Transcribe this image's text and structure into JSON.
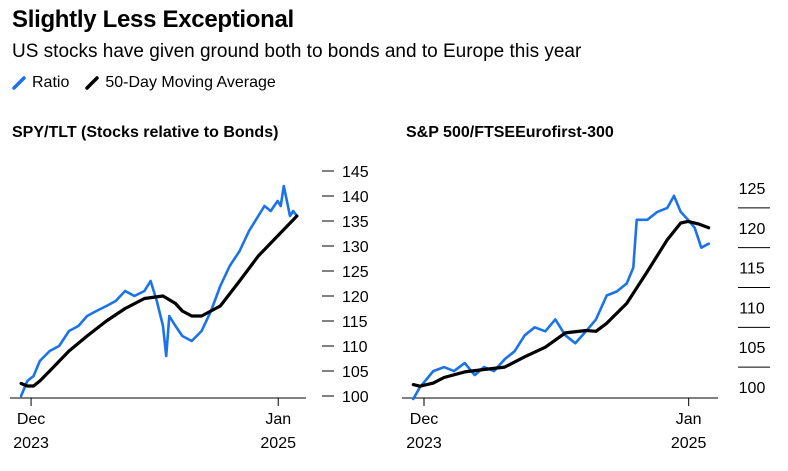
{
  "header": {
    "title": "Slightly Less Exceptional",
    "subtitle": "US stocks have given ground both to bonds and to Europe this year"
  },
  "legend": {
    "items": [
      {
        "label": "Ratio",
        "color": "#1a73e8"
      },
      {
        "label": "50-Day Moving Average",
        "color": "#000000"
      }
    ],
    "placement": "top-left"
  },
  "colors": {
    "ratio": "#1a73e8",
    "moving_average": "#000000",
    "axis": "#000000"
  },
  "chart_data": [
    {
      "type": "line",
      "title": "SPY/TLT (Stocks relative to Bonds)",
      "x_tick_labels": [
        {
          "date": "2023-12-01",
          "line1": "Dec",
          "line2": "2023"
        },
        {
          "date": "2025-01-01",
          "line1": "Jan",
          "line2": "2025"
        }
      ],
      "ylim": [
        100,
        145
      ],
      "y_ticks": [
        100,
        105,
        110,
        115,
        120,
        125,
        130,
        135,
        140,
        145
      ],
      "grid": false,
      "series": [
        {
          "name": "Ratio",
          "color": "#1a73e8",
          "points": [
            [
              "2023-11-15",
              100
            ],
            [
              "2023-11-25",
              103
            ],
            [
              "2023-12-05",
              104
            ],
            [
              "2023-12-15",
              107
            ],
            [
              "2023-12-31",
              109
            ],
            [
              "2024-01-15",
              110
            ],
            [
              "2024-01-31",
              113
            ],
            [
              "2024-02-15",
              114
            ],
            [
              "2024-02-29",
              116
            ],
            [
              "2024-03-15",
              117
            ],
            [
              "2024-03-31",
              118
            ],
            [
              "2024-04-15",
              119
            ],
            [
              "2024-04-30",
              121
            ],
            [
              "2024-05-15",
              120
            ],
            [
              "2024-05-31",
              121
            ],
            [
              "2024-06-10",
              123
            ],
            [
              "2024-06-20",
              119
            ],
            [
              "2024-06-30",
              114
            ],
            [
              "2024-07-05",
              108
            ],
            [
              "2024-07-10",
              116
            ],
            [
              "2024-07-20",
              114
            ],
            [
              "2024-07-31",
              112
            ],
            [
              "2024-08-15",
              111
            ],
            [
              "2024-08-31",
              113
            ],
            [
              "2024-09-15",
              117
            ],
            [
              "2024-09-30",
              122
            ],
            [
              "2024-10-15",
              126
            ],
            [
              "2024-10-31",
              129
            ],
            [
              "2024-11-15",
              133
            ],
            [
              "2024-11-30",
              136
            ],
            [
              "2024-12-10",
              138
            ],
            [
              "2024-12-20",
              137
            ],
            [
              "2024-12-31",
              139
            ],
            [
              "2025-01-05",
              138
            ],
            [
              "2025-01-10",
              142
            ],
            [
              "2025-01-15",
              139
            ],
            [
              "2025-01-20",
              136
            ],
            [
              "2025-01-25",
              137
            ],
            [
              "2025-01-31",
              136
            ]
          ]
        },
        {
          "name": "50-Day Moving Average",
          "color": "#000000",
          "points": [
            [
              "2023-11-15",
              102.5
            ],
            [
              "2023-11-25",
              102
            ],
            [
              "2023-12-05",
              102
            ],
            [
              "2023-12-15",
              103
            ],
            [
              "2023-12-31",
              105
            ],
            [
              "2024-01-31",
              109
            ],
            [
              "2024-02-29",
              112
            ],
            [
              "2024-03-31",
              115
            ],
            [
              "2024-04-30",
              117.5
            ],
            [
              "2024-05-31",
              119.5
            ],
            [
              "2024-06-30",
              120
            ],
            [
              "2024-07-20",
              118.5
            ],
            [
              "2024-07-31",
              117
            ],
            [
              "2024-08-15",
              116
            ],
            [
              "2024-08-31",
              116
            ],
            [
              "2024-09-30",
              118
            ],
            [
              "2024-10-31",
              123
            ],
            [
              "2024-11-30",
              128
            ],
            [
              "2024-12-31",
              132
            ],
            [
              "2025-01-31",
              136
            ]
          ]
        }
      ]
    },
    {
      "type": "line",
      "title": "S&P 500/FTSEEurofirst-300",
      "x_tick_labels": [
        {
          "date": "2023-12-01",
          "line1": "Dec",
          "line2": "2023"
        },
        {
          "date": "2025-01-01",
          "line1": "Jan",
          "line2": "2025"
        }
      ],
      "ylim": [
        99,
        126
      ],
      "y_ticks": [
        100,
        105,
        110,
        115,
        120,
        125
      ],
      "grid": false,
      "series": [
        {
          "name": "Ratio",
          "color": "#1a73e8",
          "points": [
            [
              "2023-11-15",
              98.5
            ],
            [
              "2023-11-25",
              100
            ],
            [
              "2023-12-05",
              101
            ],
            [
              "2023-12-15",
              102
            ],
            [
              "2023-12-31",
              102.5
            ],
            [
              "2024-01-15",
              102
            ],
            [
              "2024-01-31",
              103
            ],
            [
              "2024-02-15",
              101.5
            ],
            [
              "2024-02-29",
              102.5
            ],
            [
              "2024-03-15",
              102
            ],
            [
              "2024-03-31",
              103.5
            ],
            [
              "2024-04-15",
              104.5
            ],
            [
              "2024-04-30",
              106.5
            ],
            [
              "2024-05-15",
              107.5
            ],
            [
              "2024-05-31",
              107
            ],
            [
              "2024-06-15",
              108.5
            ],
            [
              "2024-06-30",
              106.5
            ],
            [
              "2024-07-15",
              105.5
            ],
            [
              "2024-07-31",
              107
            ],
            [
              "2024-08-15",
              108.5
            ],
            [
              "2024-08-31",
              111.5
            ],
            [
              "2024-09-15",
              112
            ],
            [
              "2024-09-30",
              113
            ],
            [
              "2024-10-10",
              115
            ],
            [
              "2024-10-15",
              121
            ],
            [
              "2024-10-31",
              121
            ],
            [
              "2024-11-15",
              122
            ],
            [
              "2024-11-30",
              122.5
            ],
            [
              "2024-12-10",
              124
            ],
            [
              "2024-12-20",
              122
            ],
            [
              "2024-12-31",
              121
            ],
            [
              "2025-01-10",
              120
            ],
            [
              "2025-01-20",
              117.5
            ],
            [
              "2025-01-31",
              118
            ]
          ]
        },
        {
          "name": "50-Day Moving Average",
          "color": "#000000",
          "points": [
            [
              "2023-11-15",
              100.3
            ],
            [
              "2023-11-25",
              100.1
            ],
            [
              "2023-12-15",
              100.5
            ],
            [
              "2023-12-31",
              101.2
            ],
            [
              "2024-01-31",
              101.9
            ],
            [
              "2024-02-29",
              102.2
            ],
            [
              "2024-03-31",
              102.5
            ],
            [
              "2024-04-30",
              103.8
            ],
            [
              "2024-05-31",
              105
            ],
            [
              "2024-06-30",
              106.8
            ],
            [
              "2024-07-31",
              107.1
            ],
            [
              "2024-08-15",
              107
            ],
            [
              "2024-08-31",
              108
            ],
            [
              "2024-09-30",
              110.5
            ],
            [
              "2024-10-31",
              114.5
            ],
            [
              "2024-11-30",
              118.5
            ],
            [
              "2024-12-20",
              120.6
            ],
            [
              "2024-12-31",
              120.8
            ],
            [
              "2025-01-15",
              120.5
            ],
            [
              "2025-01-31",
              120
            ]
          ]
        }
      ]
    }
  ]
}
